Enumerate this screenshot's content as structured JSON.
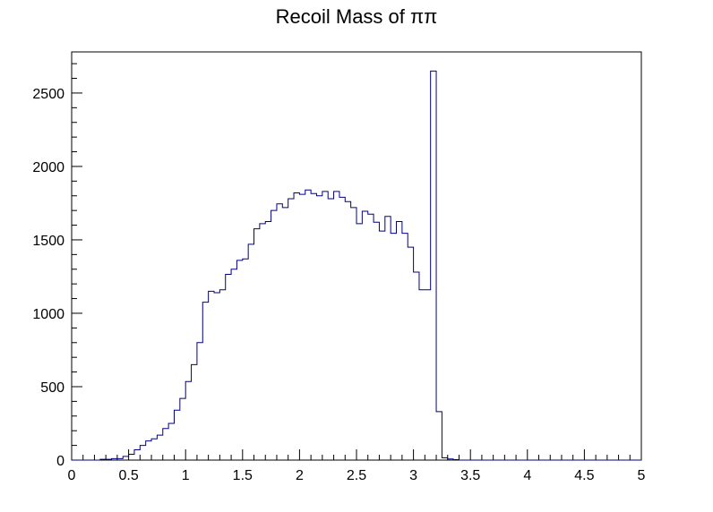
{
  "chart_data": {
    "type": "histogram",
    "title": "Recoil Mass of  ππ",
    "xlabel": "",
    "ylabel": "",
    "xlim": [
      0,
      5
    ],
    "ylim": [
      0,
      2780
    ],
    "bin_width": 0.05,
    "x_ticks": [
      0,
      0.5,
      1,
      1.5,
      2,
      2.5,
      3,
      3.5,
      4,
      4.5,
      5
    ],
    "x_tick_labels": [
      "0",
      "0.5",
      "1",
      "1.5",
      "2",
      "2.5",
      "3",
      "3.5",
      "4",
      "4.5",
      "5"
    ],
    "y_ticks": [
      0,
      500,
      1000,
      1500,
      2000,
      2500
    ],
    "y_tick_labels": [
      "0",
      "500",
      "1000",
      "1500",
      "2000",
      "2500"
    ],
    "bin_edges_start": 0,
    "values": [
      0,
      0,
      0,
      0,
      0,
      5,
      5,
      10,
      10,
      25,
      40,
      70,
      100,
      130,
      145,
      170,
      215,
      250,
      340,
      420,
      535,
      650,
      800,
      1075,
      1150,
      1140,
      1160,
      1265,
      1300,
      1360,
      1370,
      1470,
      1575,
      1610,
      1625,
      1700,
      1745,
      1720,
      1780,
      1820,
      1810,
      1840,
      1815,
      1800,
      1830,
      1780,
      1830,
      1790,
      1760,
      1720,
      1610,
      1695,
      1675,
      1620,
      1560,
      1660,
      1545,
      1625,
      1545,
      1450,
      1280,
      1160,
      1160,
      2650,
      330,
      15,
      8,
      3,
      0,
      0,
      0,
      0,
      0,
      0,
      0,
      0,
      0,
      0,
      0,
      0,
      0,
      0,
      0,
      0,
      0,
      0,
      0,
      0,
      0,
      0,
      0,
      0,
      0,
      0,
      0,
      0,
      0,
      0,
      0,
      0
    ],
    "line_color": "#000080",
    "grid": false
  }
}
